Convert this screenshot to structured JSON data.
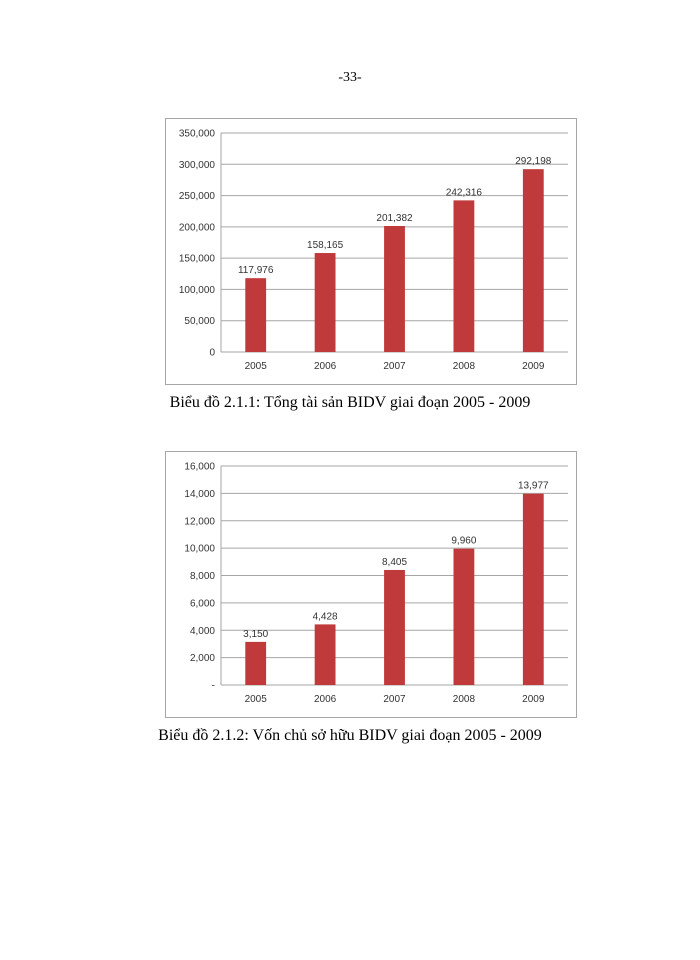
{
  "page": {
    "number_label": "-33-"
  },
  "chart_data": [
    {
      "type": "bar",
      "title": "",
      "caption": "Biểu đồ 2.1.1: Tổng tài sản BIDV giai đoạn 2005 - 2009",
      "xlabel": "",
      "ylabel": "",
      "categories": [
        "2005",
        "2006",
        "2007",
        "2008",
        "2009"
      ],
      "series": [
        {
          "name": "",
          "values": [
            117976,
            158165,
            201382,
            242316,
            292198
          ],
          "color": "#c0393b"
        }
      ],
      "value_labels": [
        "117,976",
        "158,165",
        "201,382",
        "242,316",
        "292,198"
      ],
      "ylim": [
        0,
        350000
      ],
      "yticks": [
        0,
        50000,
        100000,
        150000,
        200000,
        250000,
        300000,
        350000
      ],
      "ytick_labels": [
        "0",
        "50,000",
        "100,000",
        "150,000",
        "200,000",
        "250,000",
        "300,000",
        "350,000"
      ],
      "grid": true
    },
    {
      "type": "bar",
      "title": "",
      "caption": "Biểu đồ 2.1.2: Vốn chủ sở hữu BIDV giai đoạn 2005 - 2009",
      "xlabel": "",
      "ylabel": "",
      "categories": [
        "2005",
        "2006",
        "2007",
        "2008",
        "2009"
      ],
      "series": [
        {
          "name": "",
          "values": [
            3150,
            4428,
            8405,
            9960,
            13977
          ],
          "color": "#c0393b"
        }
      ],
      "value_labels": [
        "3,150",
        "4,428",
        "8,405",
        "9,960",
        "13,977"
      ],
      "ylim": [
        0,
        16000
      ],
      "yticks": [
        0,
        2000,
        4000,
        6000,
        8000,
        10000,
        12000,
        14000,
        16000
      ],
      "ytick_labels": [
        "-",
        "2,000",
        "4,000",
        "6,000",
        "8,000",
        "10,000",
        "12,000",
        "14,000",
        "16,000"
      ],
      "grid": true
    }
  ]
}
